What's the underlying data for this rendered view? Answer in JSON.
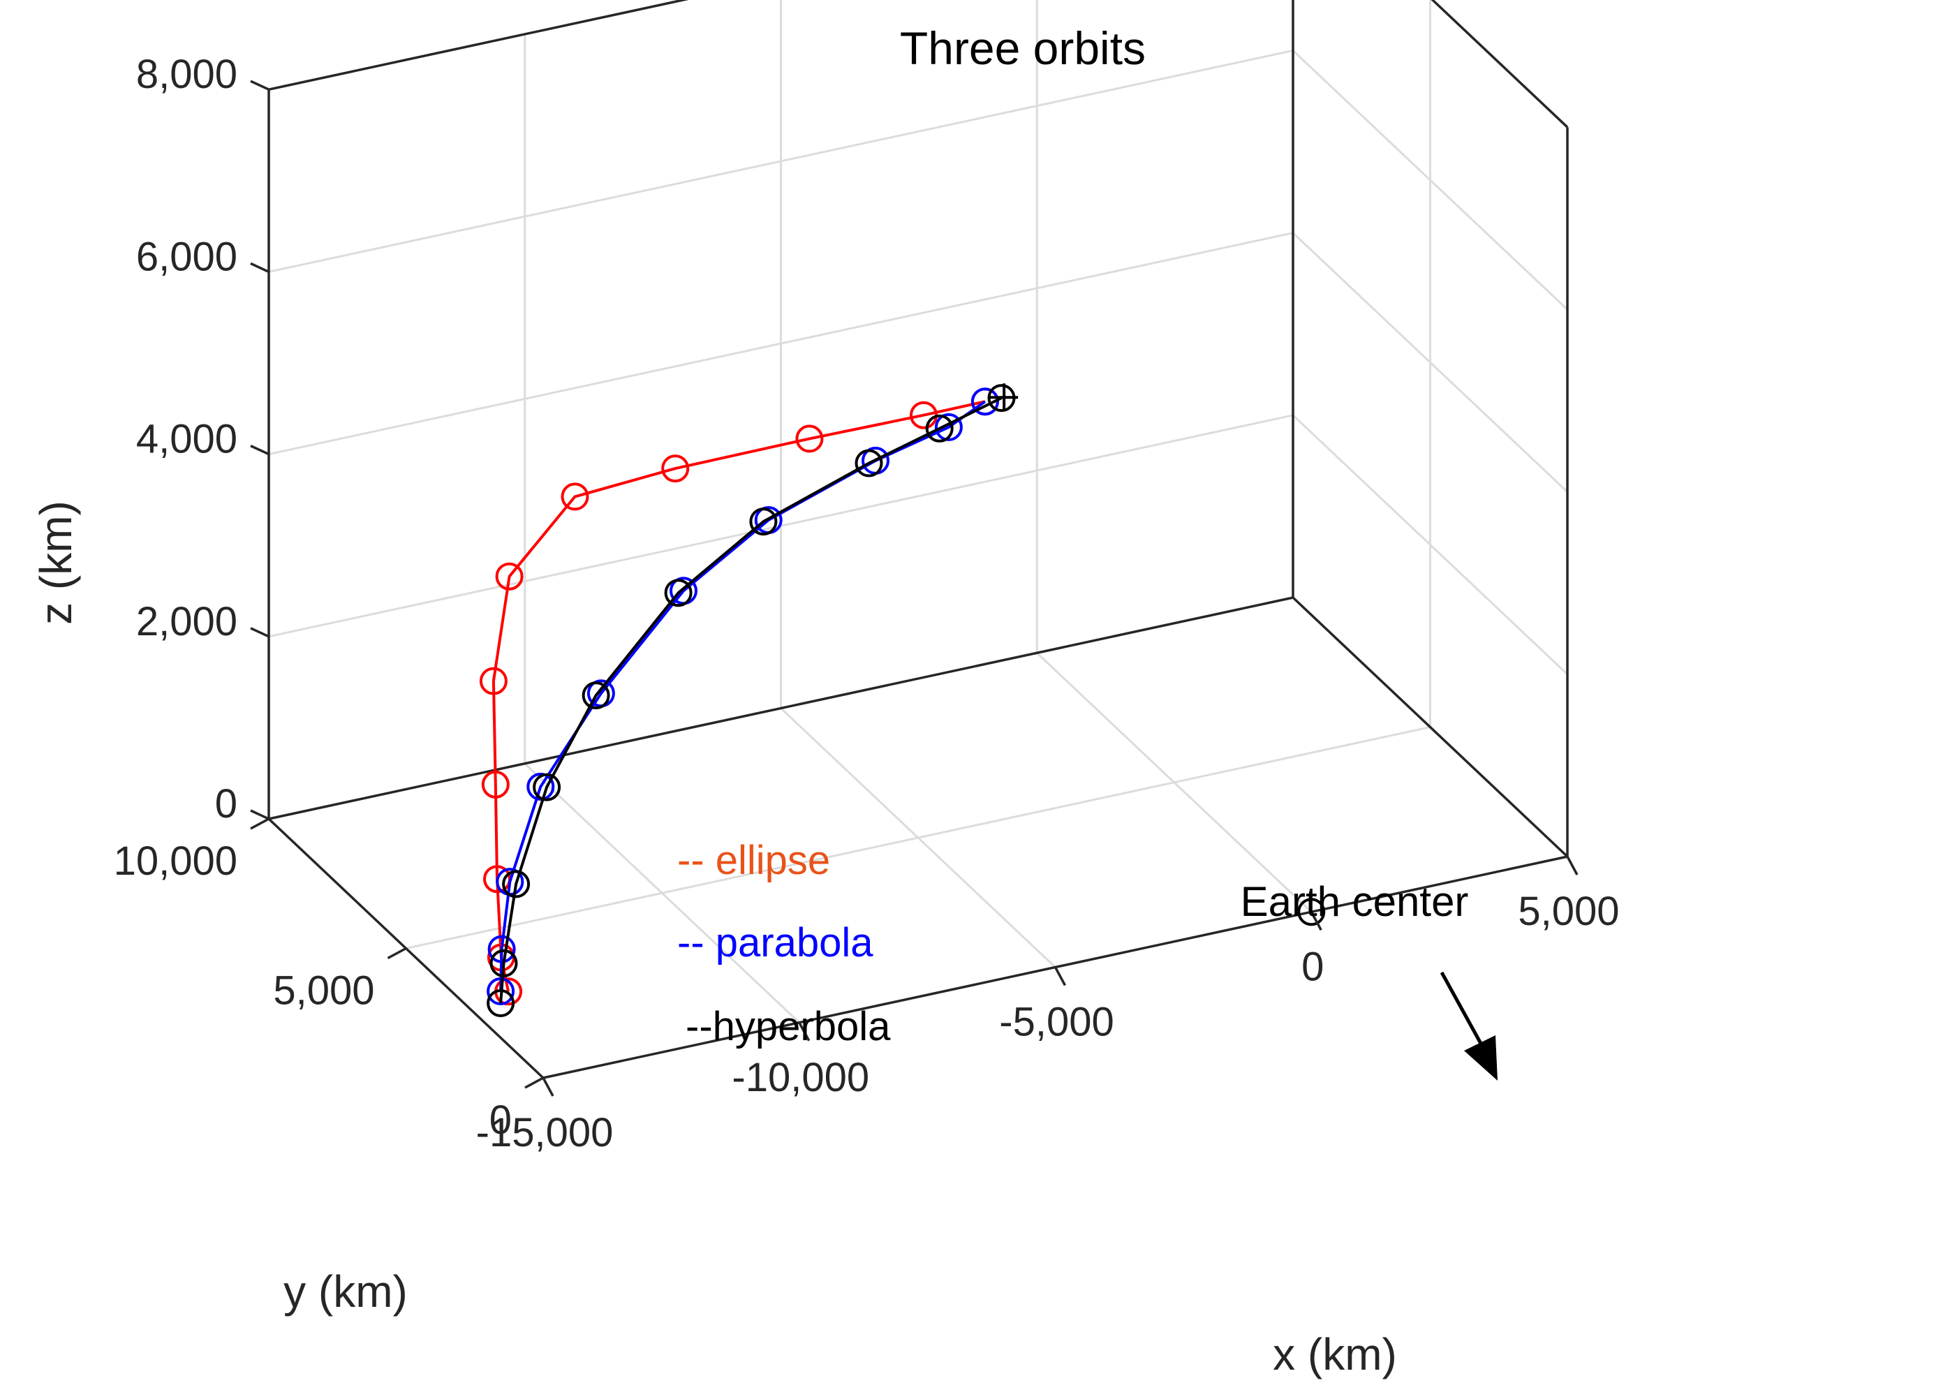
{
  "chart_data": {
    "type": "line3d",
    "title": "Three orbits",
    "xlabel": "x (km)",
    "ylabel": "y (km)",
    "zlabel": "z (km)",
    "xlim": [
      -15000,
      5000
    ],
    "ylim": [
      0,
      10000
    ],
    "zlim": [
      0,
      8000
    ],
    "grid": true,
    "x_ticks": [
      "-15,000",
      "-10,000",
      "-5,000",
      "0",
      "5,000"
    ],
    "x_tick_values": [
      -15000,
      -10000,
      -5000,
      0,
      5000
    ],
    "y_ticks": [
      "0",
      "5,000",
      "10,000"
    ],
    "y_tick_values": [
      0,
      5000,
      10000
    ],
    "z_ticks": [
      "0",
      "2,000",
      "4,000",
      "6,000",
      "8,000"
    ],
    "z_tick_values": [
      0,
      2000,
      4000,
      6000,
      8000
    ],
    "series": [
      {
        "name": "ellipse",
        "color": "#ff0000",
        "points": [
          [
            -6371,
            0,
            6371
          ],
          [
            -7570,
            0,
            6367
          ],
          [
            -9800,
            0,
            6380
          ],
          [
            -12420,
            0,
            6371
          ],
          [
            -14380,
            0,
            6300
          ],
          [
            -15660,
            0,
            5580
          ],
          [
            -15970,
            0,
            4470
          ],
          [
            -15930,
            0,
            3330
          ],
          [
            -15900,
            0,
            2290
          ],
          [
            -15820,
            0,
            1420
          ],
          [
            -15680,
            0,
            1030
          ]
        ]
      },
      {
        "name": "parabola",
        "color": "#0000ff",
        "points": [
          [
            -6371,
            0,
            6371
          ],
          [
            -7080,
            0,
            6176
          ],
          [
            -8510,
            0,
            5982
          ],
          [
            -10600,
            0,
            5584
          ],
          [
            -12260,
            0,
            5010
          ],
          [
            -13870,
            0,
            4080
          ],
          [
            -15050,
            0,
            3200
          ],
          [
            -15650,
            0,
            2230
          ],
          [
            -15810,
            0,
            1510
          ],
          [
            -15830,
            0,
            1050
          ]
        ]
      },
      {
        "name": "hyperbola",
        "color": "#000000",
        "points": [
          [
            -6050,
            0,
            6371
          ],
          [
            -7260,
            0,
            6183
          ],
          [
            -8640,
            0,
            5970
          ],
          [
            -10700,
            0,
            5580
          ],
          [
            -12360,
            0,
            5000
          ],
          [
            -13970,
            0,
            4070
          ],
          [
            -14930,
            0,
            3180
          ],
          [
            -15530,
            0,
            2190
          ],
          [
            -15770,
            0,
            1350
          ],
          [
            -15830,
            0,
            920
          ]
        ]
      }
    ],
    "earth_center": [
      0,
      0,
      0
    ],
    "annotations": [
      {
        "text": "Earth center",
        "arrow_to": "earth_center"
      }
    ],
    "legend": {
      "position": "inside",
      "entries": [
        {
          "label": "-- ellipse",
          "color": "#e8531a"
        },
        {
          "label": "-- parabola",
          "color": "#0000ff"
        },
        {
          "label": "--hyperbola",
          "color": "#000000"
        }
      ]
    }
  }
}
